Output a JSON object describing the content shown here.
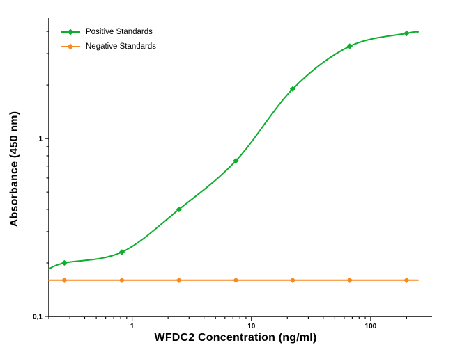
{
  "chart_data": {
    "type": "line",
    "title": "",
    "xlabel": "WFDC2 Concentration (ng/ml)",
    "ylabel": "Absorbance (450 nm)",
    "xscale": "log",
    "yscale": "log",
    "xlim": [
      0.2,
      250
    ],
    "ylim": [
      0.1,
      4.5
    ],
    "grid": false,
    "legend_position": "top-left",
    "axis_color": "#000000",
    "background": "#ffffff",
    "x_tick_labels": [
      {
        "value": 1,
        "label": "1"
      },
      {
        "value": 10,
        "label": "10"
      },
      {
        "value": 100,
        "label": "100"
      }
    ],
    "y_tick_labels": [
      {
        "value": 0.1,
        "label": "0,1"
      },
      {
        "value": 1,
        "label": "1"
      }
    ],
    "x": [
      0.27,
      0.82,
      2.47,
      7.41,
      22.2,
      66.7,
      200
    ],
    "series": [
      {
        "name": "Positive Standards",
        "color": "#0fae2e",
        "marker": "diamond",
        "values": [
          0.2,
          0.23,
          0.4,
          0.75,
          1.9,
          3.3,
          3.9
        ],
        "curve": [
          [
            0.2,
            0.185
          ],
          [
            0.27,
            0.2
          ],
          [
            0.82,
            0.23
          ],
          [
            2.47,
            0.4
          ],
          [
            7.41,
            0.75
          ],
          [
            22.2,
            1.9
          ],
          [
            66.7,
            3.3
          ],
          [
            200,
            3.9
          ],
          [
            250,
            3.97
          ]
        ]
      },
      {
        "name": "Negative Standards",
        "color": "#f6891f",
        "marker": "diamond",
        "values": [
          0.16,
          0.16,
          0.16,
          0.16,
          0.16,
          0.16,
          0.16
        ],
        "curve": [
          [
            0.2,
            0.16
          ],
          [
            250,
            0.16
          ]
        ]
      }
    ]
  }
}
